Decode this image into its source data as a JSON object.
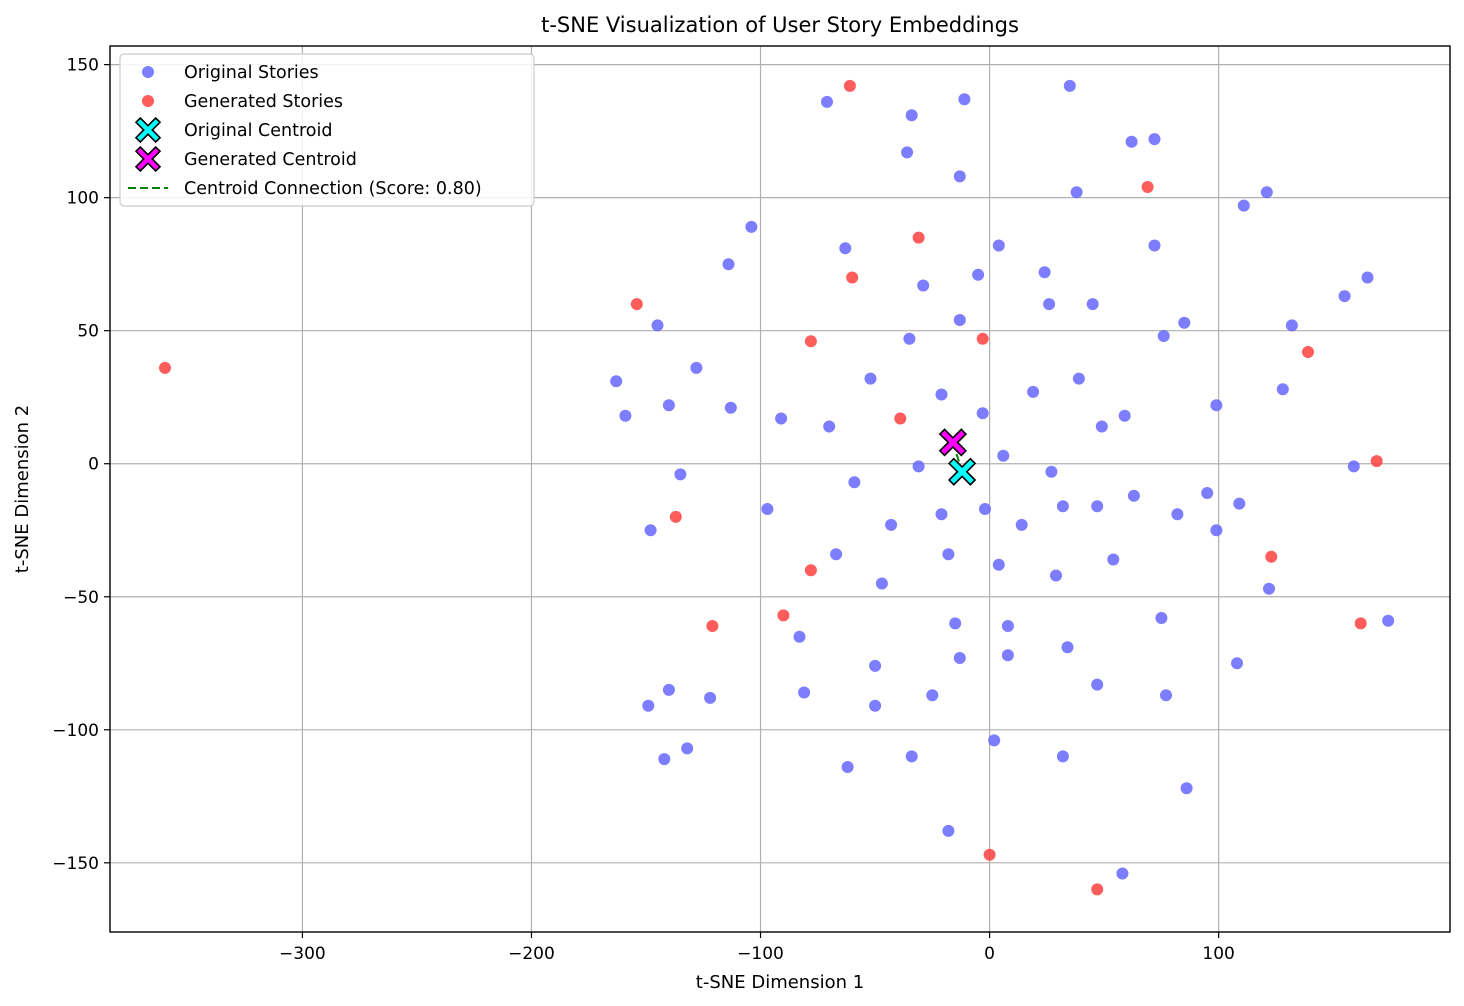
{
  "chart_data": {
    "type": "scatter",
    "title": "t-SNE Visualization of User Story Embeddings",
    "xlabel": "t-SNE Dimension 1",
    "ylabel": "t-SNE Dimension 2",
    "xlim": [
      -384,
      201
    ],
    "ylim": [
      -176,
      157
    ],
    "xticks": [
      -300,
      -200,
      -100,
      0,
      100
    ],
    "yticks": [
      -150,
      -100,
      -50,
      0,
      50,
      100,
      150
    ],
    "grid": true,
    "legend_position": "top-left",
    "series": [
      {
        "name": "Original Stories",
        "marker": "circle",
        "color": "#6666ff",
        "points": [
          [
            -71,
            136
          ],
          [
            -34,
            131
          ],
          [
            -11,
            137
          ],
          [
            35,
            142
          ],
          [
            -36,
            117
          ],
          [
            -13,
            108
          ],
          [
            62,
            121
          ],
          [
            72,
            122
          ],
          [
            38,
            102
          ],
          [
            121,
            102
          ],
          [
            111,
            97
          ],
          [
            -104,
            89
          ],
          [
            -63,
            81
          ],
          [
            4,
            82
          ],
          [
            72,
            82
          ],
          [
            -114,
            75
          ],
          [
            -29,
            67
          ],
          [
            -5,
            71
          ],
          [
            24,
            72
          ],
          [
            165,
            70
          ],
          [
            155,
            63
          ],
          [
            -145,
            52
          ],
          [
            -13,
            54
          ],
          [
            26,
            60
          ],
          [
            45,
            60
          ],
          [
            85,
            53
          ],
          [
            132,
            52
          ],
          [
            -35,
            47
          ],
          [
            76,
            48
          ],
          [
            -163,
            31
          ],
          [
            -128,
            36
          ],
          [
            -52,
            32
          ],
          [
            39,
            32
          ],
          [
            -159,
            18
          ],
          [
            -140,
            22
          ],
          [
            -113,
            21
          ],
          [
            -91,
            17
          ],
          [
            -70,
            14
          ],
          [
            -21,
            26
          ],
          [
            -3,
            19
          ],
          [
            19,
            27
          ],
          [
            59,
            18
          ],
          [
            49,
            14
          ],
          [
            99,
            22
          ],
          [
            128,
            28
          ],
          [
            -135,
            -4
          ],
          [
            -31,
            -1
          ],
          [
            6,
            3
          ],
          [
            27,
            -3
          ],
          [
            159,
            -1
          ],
          [
            -59,
            -7
          ],
          [
            -97,
            -17
          ],
          [
            -148,
            -25
          ],
          [
            -43,
            -23
          ],
          [
            -21,
            -19
          ],
          [
            -2,
            -17
          ],
          [
            14,
            -23
          ],
          [
            32,
            -16
          ],
          [
            47,
            -16
          ],
          [
            63,
            -12
          ],
          [
            82,
            -19
          ],
          [
            95,
            -11
          ],
          [
            99,
            -25
          ],
          [
            109,
            -15
          ],
          [
            -67,
            -34
          ],
          [
            -18,
            -34
          ],
          [
            4,
            -38
          ],
          [
            29,
            -42
          ],
          [
            54,
            -36
          ],
          [
            -47,
            -45
          ],
          [
            122,
            -47
          ],
          [
            -83,
            -65
          ],
          [
            -15,
            -60
          ],
          [
            8,
            -61
          ],
          [
            75,
            -58
          ],
          [
            174,
            -59
          ],
          [
            -50,
            -76
          ],
          [
            -13,
            -73
          ],
          [
            8,
            -72
          ],
          [
            34,
            -69
          ],
          [
            108,
            -75
          ],
          [
            -140,
            -85
          ],
          [
            -149,
            -91
          ],
          [
            -122,
            -88
          ],
          [
            -81,
            -86
          ],
          [
            -50,
            -91
          ],
          [
            -25,
            -87
          ],
          [
            47,
            -83
          ],
          [
            77,
            -87
          ],
          [
            -142,
            -111
          ],
          [
            -132,
            -107
          ],
          [
            -62,
            -114
          ],
          [
            -34,
            -110
          ],
          [
            2,
            -104
          ],
          [
            32,
            -110
          ],
          [
            86,
            -122
          ],
          [
            -18,
            -138
          ],
          [
            58,
            -154
          ]
        ]
      },
      {
        "name": "Generated Stories",
        "marker": "circle",
        "color": "#ff4040",
        "points": [
          [
            -61,
            142
          ],
          [
            69,
            104
          ],
          [
            -31,
            85
          ],
          [
            -60,
            70
          ],
          [
            -154,
            60
          ],
          [
            -78,
            46
          ],
          [
            -3,
            47
          ],
          [
            139,
            42
          ],
          [
            -39,
            17
          ],
          [
            169,
            1
          ],
          [
            -137,
            -20
          ],
          [
            123,
            -35
          ],
          [
            -78,
            -40
          ],
          [
            -121,
            -61
          ],
          [
            -90,
            -57
          ],
          [
            162,
            -60
          ],
          [
            -360,
            36
          ],
          [
            0,
            -147
          ],
          [
            47,
            -160
          ]
        ]
      },
      {
        "name": "Original Centroid",
        "marker": "x",
        "color": "#00ffff",
        "points": [
          [
            -12,
            -3
          ]
        ]
      },
      {
        "name": "Generated Centroid",
        "marker": "x",
        "color": "#ff00ff",
        "points": [
          [
            -16,
            8
          ]
        ]
      },
      {
        "name": "Centroid Connection (Score: 0.80)",
        "marker": "dashed-line",
        "color": "#008000",
        "points": [
          [
            -16,
            8
          ],
          [
            -12,
            -3
          ]
        ]
      }
    ]
  }
}
